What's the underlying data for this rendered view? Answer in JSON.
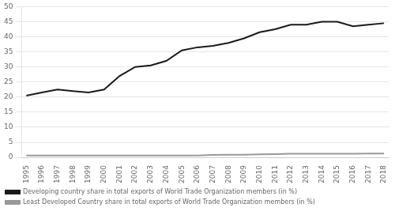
{
  "chart_data": {
    "type": "line",
    "x": [
      1995,
      1996,
      1997,
      1998,
      1999,
      2000,
      2001,
      2002,
      2003,
      2004,
      2005,
      2006,
      2007,
      2008,
      2009,
      2010,
      2011,
      2012,
      2013,
      2014,
      2015,
      2016,
      2017,
      2018
    ],
    "series": [
      {
        "name": "Developing country share in total exports of World Trade Organization members (in %)",
        "color": "#1a1a1a",
        "values": [
          20.5,
          21.5,
          22.5,
          22.0,
          21.5,
          22.5,
          27.0,
          30.0,
          30.5,
          32.0,
          35.5,
          36.5,
          37.0,
          38.0,
          39.5,
          41.5,
          42.5,
          44.0,
          44.0,
          45.0,
          45.0,
          43.5,
          44.0,
          44.5
        ]
      },
      {
        "name": "Least Developed Country share in total exports of World Trade Organization members (in %)",
        "color": "#999999",
        "values": [
          0.6,
          0.6,
          0.6,
          0.6,
          0.6,
          0.6,
          0.6,
          0.6,
          0.6,
          0.6,
          0.6,
          0.6,
          0.8,
          0.9,
          0.9,
          1.0,
          1.1,
          1.2,
          1.2,
          1.2,
          1.2,
          1.2,
          1.3,
          1.3
        ]
      }
    ],
    "xlim": [
      1994.7,
      2018.3
    ],
    "xticks": [
      1995,
      1996,
      1997,
      1998,
      1999,
      2000,
      2001,
      2002,
      2003,
      2004,
      2005,
      2006,
      2007,
      2008,
      2009,
      2010,
      2011,
      2012,
      2013,
      2014,
      2015,
      2016,
      2017,
      2018
    ],
    "ylim": [
      0,
      50
    ],
    "yticks": [
      0,
      5,
      10,
      15,
      20,
      25,
      30,
      35,
      40,
      45,
      50
    ],
    "grid": true,
    "legend": "bottom"
  }
}
